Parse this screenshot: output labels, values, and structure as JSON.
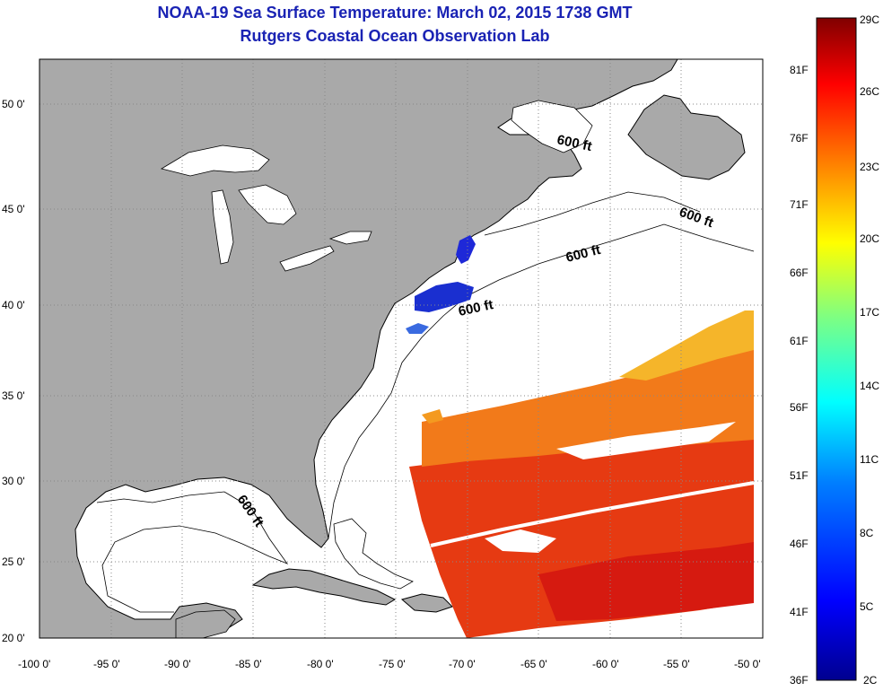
{
  "title": {
    "line1": "NOAA-19 Sea Surface Temperature:  March 02, 2015 1738 GMT",
    "line2": "Rutgers Coastal Ocean Observation Lab"
  },
  "map": {
    "lon_ticks": [
      "-100 0'",
      "-95 0'",
      "-90 0'",
      "-85 0'",
      "-80 0'",
      "-75 0'",
      "-70 0'",
      "-65 0'",
      "-60 0'",
      "-55 0'",
      "-50 0'"
    ],
    "lat_ticks": [
      "20 0'",
      "25 0'",
      "30 0'",
      "35 0'",
      "40 0'",
      "45 0'",
      "50 0'"
    ],
    "contour_label": "600 ft",
    "colors": {
      "land": "#a9a9a9",
      "ocean": "#ffffff",
      "grid": "#888888"
    }
  },
  "colorbar": {
    "celsius_labels": [
      "29C",
      "26C",
      "23C",
      "20C",
      "17C",
      "14C",
      "11C",
      "8C",
      "5C",
      "2C"
    ],
    "fahrenheit_labels": [
      "81F",
      "76F",
      "71F",
      "66F",
      "61F",
      "56F",
      "51F",
      "46F",
      "41F",
      "36F"
    ],
    "range_c": [
      2,
      29
    ],
    "colors": [
      "#00008f",
      "#0000ff",
      "#0080ff",
      "#00ffff",
      "#80ff80",
      "#ffff00",
      "#ff8000",
      "#ff0000",
      "#800000"
    ]
  }
}
